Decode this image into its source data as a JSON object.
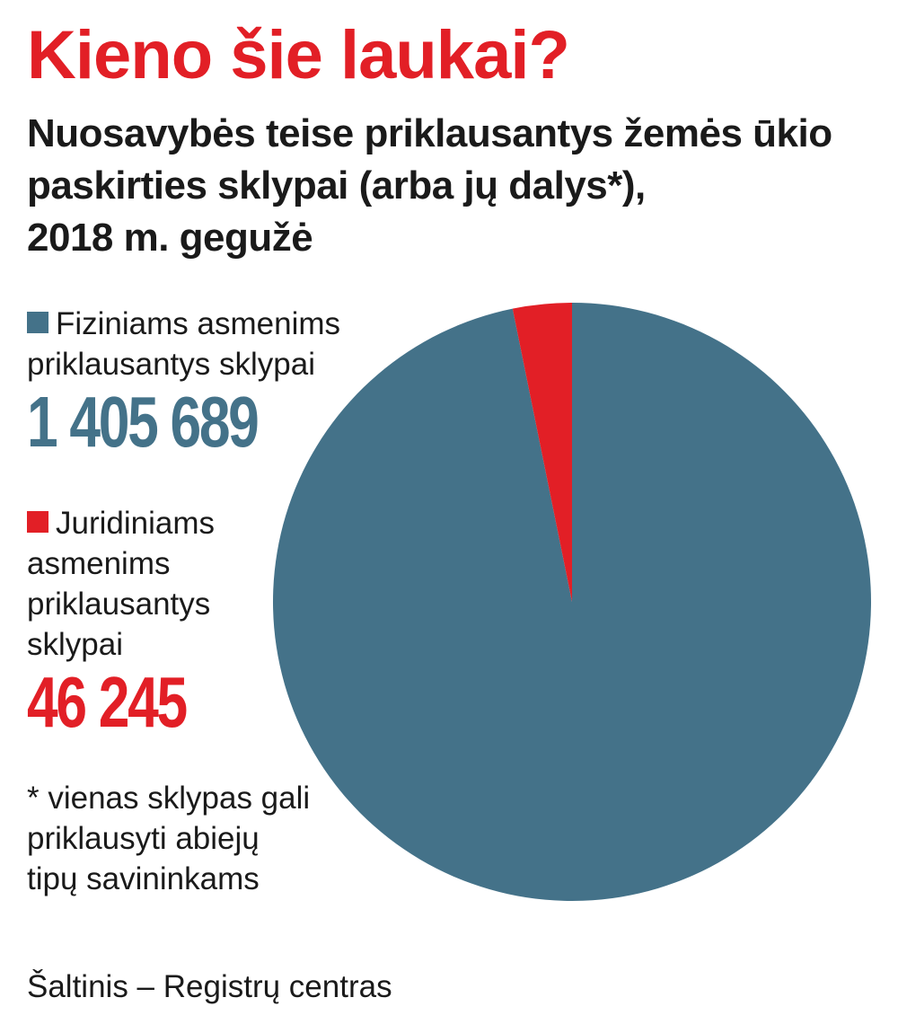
{
  "title": "Kieno šie laukai?",
  "subtitle": [
    "Nuosavybės teise priklausantys žemės ūkio",
    "paskirties sklypai (arba jų dalys*),",
    "2018 m. gegužė"
  ],
  "colors": {
    "title": "#e21f26",
    "fizinis": "#447289",
    "juridinis": "#e21f26"
  },
  "legend": {
    "fizinis": {
      "label_lines": [
        "Fiziniams asmenims",
        "priklausantys sklypai"
      ],
      "value": "1 405 689"
    },
    "juridinis": {
      "label_lines": [
        "Juridiniams",
        "asmenims",
        "priklausantys",
        "sklypai"
      ],
      "value": "46 245"
    }
  },
  "footnote": [
    "* vienas sklypas gali",
    "priklausyti abiejų",
    "tipų savininkams"
  ],
  "source": "Šaltinis – Registrų centras",
  "chart_data": {
    "type": "pie",
    "title": "Kieno šie laukai?",
    "categories": [
      "Fiziniams asmenims priklausantys sklypai",
      "Juridiniams asmenims priklausantys sklypai"
    ],
    "values": [
      1405689,
      46245
    ],
    "colors": [
      "#447289",
      "#e21f26"
    ],
    "start": "12 o'clock",
    "direction": "clockwise, red slice ending at 12 o'clock"
  }
}
